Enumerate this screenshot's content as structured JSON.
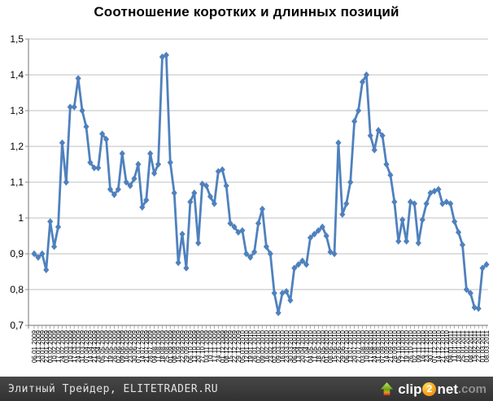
{
  "chart": {
    "title": "Соотношение коротких и длинных позиций"
  },
  "chart_data": {
    "type": "line",
    "title": "Соотношение коротких и длинных позиций",
    "xlabel": "",
    "ylabel": "",
    "ylim": [
      0.7,
      1.5
    ],
    "ytick_labels": [
      "1,5",
      "1,4",
      "1,3",
      "1,2",
      "1,1",
      "1",
      "0,9",
      "0,8",
      "0,7"
    ],
    "grid": "horizontal",
    "legend_position": "none",
    "marker": "diamond",
    "series_color": "#4F81BD",
    "gridline_color": "#BFBFBF",
    "axis_color": "#8C8C8C",
    "x": [
      "06.01.2009",
      "13.01.2009",
      "20.01.2009",
      "27.01.2009",
      "03.02.2009",
      "10.02.2009",
      "17.02.2009",
      "24.02.2009",
      "03.03.2009",
      "10.03.2009",
      "17.03.2009",
      "24.03.2009",
      "31.03.2009",
      "07.04.2009",
      "14.04.2009",
      "21.04.2009",
      "28.04.2009",
      "05.05.2009",
      "12.05.2009",
      "19.05.2009",
      "26.05.2009",
      "02.06.2009",
      "09.06.2009",
      "16.06.2009",
      "23.06.2009",
      "30.06.2009",
      "07.07.2009",
      "14.07.2009",
      "21.07.2009",
      "28.07.2009",
      "04.08.2009",
      "11.08.2009",
      "18.08.2009",
      "25.08.2009",
      "01.09.2009",
      "08.09.2009",
      "15.09.2009",
      "22.09.2009",
      "29.09.2009",
      "06.10.2009",
      "13.10.2009",
      "20.10.2009",
      "27.10.2009",
      "03.11.2009",
      "10.11.2009",
      "17.11.2009",
      "24.11.2009",
      "01.12.2009",
      "08.12.2009",
      "15.12.2009",
      "22.12.2009",
      "29.12.2009",
      "05.01.2010",
      "12.01.2010",
      "19.01.2010",
      "26.01.2010",
      "02.02.2010",
      "09.02.2010",
      "16.02.2010",
      "23.02.2010",
      "02.03.2010",
      "09.03.2010",
      "16.03.2010",
      "23.03.2010",
      "30.03.2010",
      "06.04.2010",
      "13.04.2010",
      "20.04.2010",
      "27.04.2010",
      "04.05.2010",
      "11.05.2010",
      "18.05.2010",
      "25.05.2010",
      "01.06.2010",
      "08.06.2010",
      "15.06.2010",
      "22.06.2010",
      "29.06.2010",
      "06.07.2010",
      "13.07.2010",
      "20.07.2010",
      "27.07.2010",
      "03.08.2010",
      "10.08.2010",
      "17.08.2010",
      "24.08.2010",
      "31.08.2010",
      "07.09.2010",
      "14.09.2010",
      "21.09.2010",
      "28.09.2010",
      "05.10.2010",
      "12.10.2010",
      "19.10.2010",
      "26.10.2010",
      "02.11.2010",
      "09.11.2010",
      "16.11.2010",
      "23.11.2010",
      "30.11.2010",
      "07.12.2010",
      "14.12.2010",
      "21.12.2010",
      "28.12.2010",
      "04.01.2011",
      "11.01.2011",
      "18.01.2011",
      "25.01.2011",
      "01.02.2011",
      "08.02.2011",
      "15.02.2011",
      "22.02.2011",
      "01.03.2011",
      "08.03.2011"
    ],
    "values": [
      0.9,
      0.89,
      0.9,
      0.855,
      0.99,
      0.92,
      0.975,
      1.21,
      1.1,
      1.31,
      1.31,
      1.39,
      1.3,
      1.255,
      1.155,
      1.14,
      1.14,
      1.235,
      1.22,
      1.08,
      1.065,
      1.08,
      1.18,
      1.1,
      1.09,
      1.11,
      1.15,
      1.03,
      1.05,
      1.18,
      1.125,
      1.15,
      1.45,
      1.455,
      1.155,
      1.07,
      0.875,
      0.955,
      0.86,
      1.045,
      1.07,
      0.93,
      1.095,
      1.09,
      1.06,
      1.04,
      1.13,
      1.135,
      1.09,
      0.985,
      0.975,
      0.96,
      0.965,
      0.9,
      0.89,
      0.905,
      0.985,
      1.025,
      0.92,
      0.9,
      0.79,
      0.735,
      0.79,
      0.795,
      0.77,
      0.86,
      0.87,
      0.88,
      0.87,
      0.945,
      0.955,
      0.965,
      0.975,
      0.95,
      0.905,
      0.9,
      1.21,
      1.01,
      1.04,
      1.1,
      1.27,
      1.3,
      1.38,
      1.4,
      1.23,
      1.19,
      1.245,
      1.23,
      1.15,
      1.12,
      1.045,
      0.935,
      0.995,
      0.935,
      1.045,
      1.04,
      0.93,
      0.995,
      1.04,
      1.07,
      1.075,
      1.08,
      1.04,
      1.045,
      1.04,
      0.99,
      0.96,
      0.925,
      0.8,
      0.79,
      0.75,
      0.747,
      0.86,
      0.87
    ]
  },
  "footer": {
    "credit": "Элитный Трейдер, ELITETRADER.RU",
    "logo": {
      "part1": "clip",
      "part2": "2",
      "part3": "net",
      "part4": ".com"
    }
  }
}
